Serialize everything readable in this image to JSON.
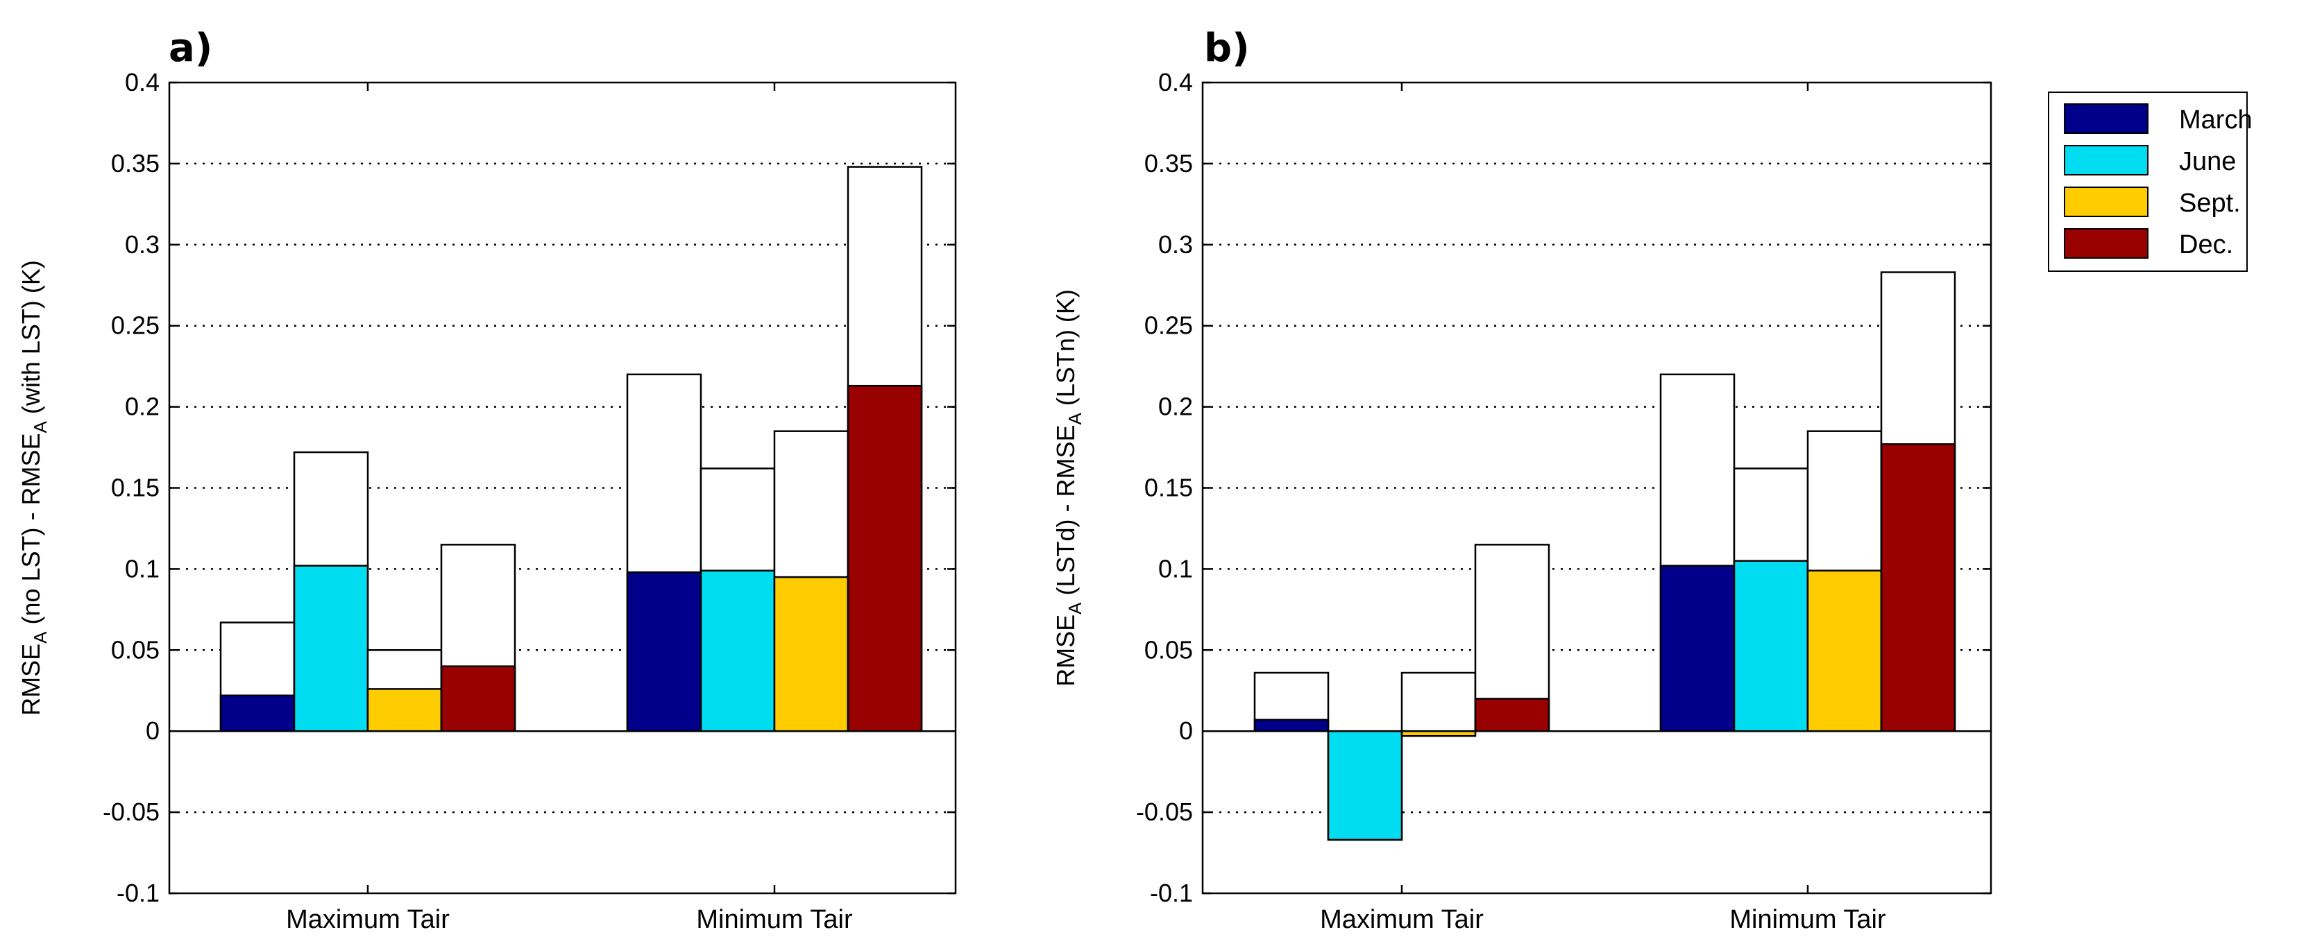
{
  "colors": {
    "March": "#00008b",
    "June": "#00dcf0",
    "Sept.": "#ffcc00",
    "Dec.": "#990000",
    "envelope": "#ffffff",
    "grid": "#000000"
  },
  "legend": {
    "entries": [
      "March",
      "June",
      "Sept.",
      "Dec."
    ]
  },
  "chart_data": [
    {
      "type": "bar",
      "panel_label": "a)",
      "ylabel": {
        "parts": [
          {
            "t": "RMSE",
            "sub": false
          },
          {
            "t": "A",
            "sub": true
          },
          {
            "t": " (no LST) - RMSE",
            "sub": false
          },
          {
            "t": "A",
            "sub": true
          },
          {
            "t": " (with LST) (K)",
            "sub": false
          }
        ]
      },
      "ylim": [
        -0.1,
        0.4
      ],
      "yticks": [
        -0.1,
        -0.05,
        0,
        0.05,
        0.1,
        0.15,
        0.2,
        0.25,
        0.3,
        0.35,
        0.4
      ],
      "ytick_labels": [
        "-0.1",
        "-0.05",
        "0",
        "0.05",
        "0.1",
        "0.15",
        "0.2",
        "0.25",
        "0.3",
        "0.35",
        "0.4"
      ],
      "grid": "y-dotted",
      "categories": [
        "Maximum Tair",
        "Minimum Tair"
      ],
      "series": [
        {
          "name": "March",
          "values": [
            0.022,
            0.098
          ],
          "envelope": [
            0.067,
            0.22
          ]
        },
        {
          "name": "June",
          "values": [
            0.102,
            0.099
          ],
          "envelope": [
            0.172,
            0.162
          ]
        },
        {
          "name": "Sept.",
          "values": [
            0.026,
            0.095
          ],
          "envelope": [
            0.05,
            0.185
          ]
        },
        {
          "name": "Dec.",
          "values": [
            0.04,
            0.213
          ],
          "envelope": [
            0.115,
            0.348
          ]
        }
      ]
    },
    {
      "type": "bar",
      "panel_label": "b)",
      "ylabel": {
        "parts": [
          {
            "t": "RMSE",
            "sub": false
          },
          {
            "t": "A",
            "sub": true
          },
          {
            "t": " (LSTd) - RMSE",
            "sub": false
          },
          {
            "t": "A",
            "sub": true
          },
          {
            "t": " (LSTn) (K)",
            "sub": false
          }
        ]
      },
      "ylim": [
        -0.1,
        0.4
      ],
      "yticks": [
        -0.1,
        -0.05,
        0,
        0.05,
        0.1,
        0.15,
        0.2,
        0.25,
        0.3,
        0.35,
        0.4
      ],
      "ytick_labels": [
        "-0.1",
        "-0.05",
        "0",
        "0.05",
        "0.1",
        "0.15",
        "0.2",
        "0.25",
        "0.3",
        "0.35",
        "0.4"
      ],
      "grid": "y-dotted",
      "categories": [
        "Maximum Tair",
        "Minimum Tair"
      ],
      "series": [
        {
          "name": "March",
          "values": [
            0.007,
            0.102
          ],
          "envelope": [
            0.036,
            0.22
          ]
        },
        {
          "name": "June",
          "values": [
            -0.067,
            0.105
          ],
          "envelope": [
            -0.067,
            0.162
          ]
        },
        {
          "name": "Sept.",
          "values": [
            -0.003,
            0.099
          ],
          "envelope": [
            0.036,
            0.185
          ]
        },
        {
          "name": "Dec.",
          "values": [
            0.02,
            0.177
          ],
          "envelope": [
            0.115,
            0.283
          ]
        }
      ]
    }
  ]
}
